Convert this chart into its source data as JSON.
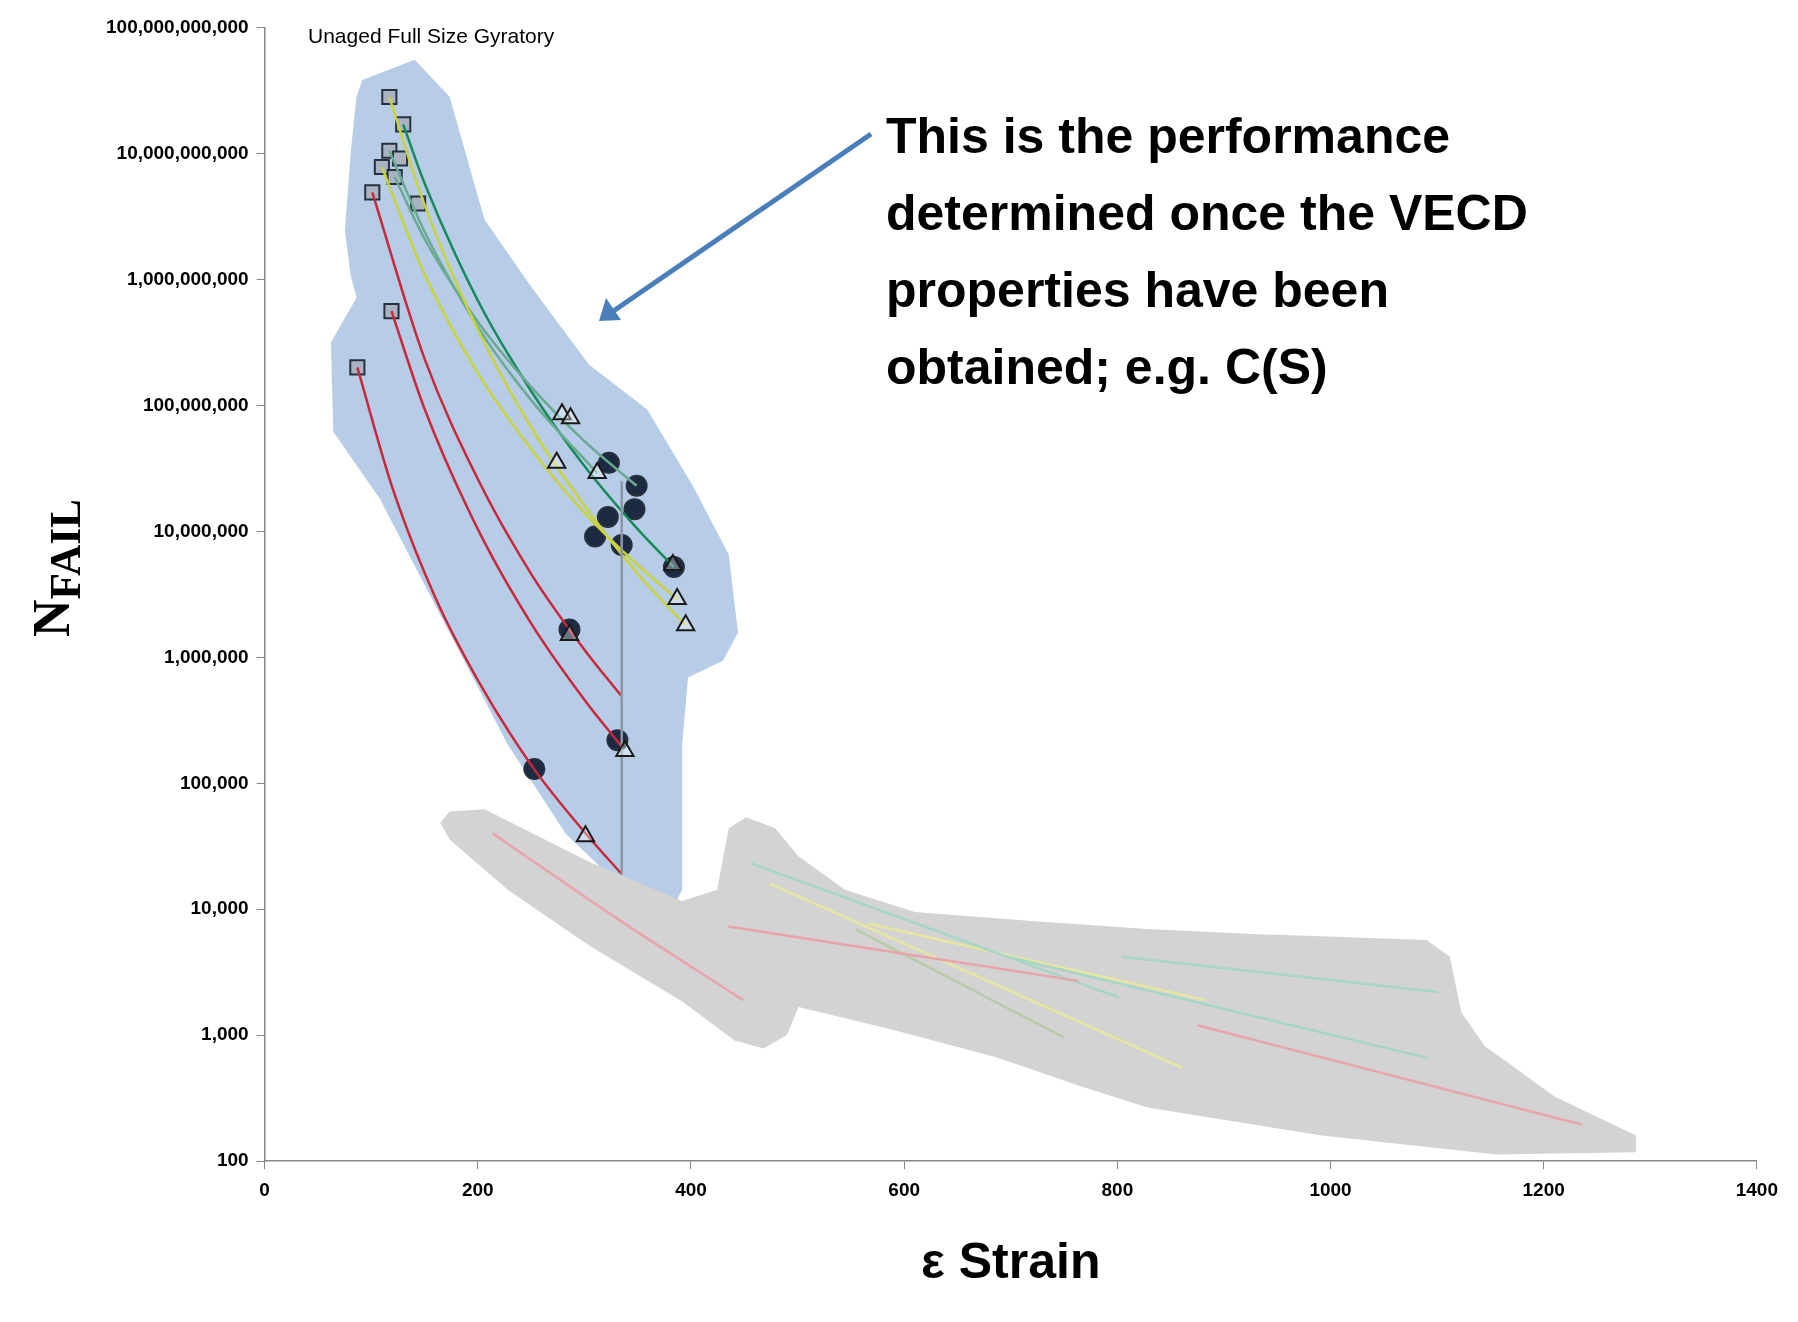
{
  "chart_data": {
    "type": "scatter",
    "xlabel": "ε Strain",
    "ylabel": "N$_{FAIL}$",
    "xlim": [
      0,
      1400
    ],
    "xticks": [
      0,
      200,
      400,
      600,
      800,
      1000,
      1200,
      1400
    ],
    "ylim": [
      100,
      100000000000
    ],
    "log": true,
    "yticks": [
      100,
      {
        "value": 1000,
        "label": "1,000"
      },
      {
        "value": 10000,
        "label": "10,000"
      },
      {
        "value": 100000,
        "label": "100,000"
      },
      {
        "value": 1000000,
        "label": "1,000,000"
      },
      {
        "value": 10000000,
        "label": "10,000,000"
      },
      {
        "value": 100000000,
        "label": "100,000,000"
      },
      {
        "value": 1000000000,
        "label": "1,000,000,000"
      },
      {
        "value": 10000000000,
        "label": "10,000,000,000"
      },
      {
        "value": 100000000000,
        "label": "100,000,000,000"
      }
    ],
    "annotations": [
      "Unaged Full Size Gyratory",
      "This is the performance determined once the VECD properties have been obtained; e.g. C(S)"
    ],
    "series": [
      {
        "type": "line",
        "color": "#e8a4aa",
        "x": [
          214,
          330,
          449
        ],
        "values": [
          40000,
          8500,
          1900
        ]
      },
      {
        "type": "line",
        "color": "#e8a4aa",
        "x": [
          435,
          763
        ],
        "values": [
          7300,
          2700
        ]
      },
      {
        "type": "line",
        "color": "#e8a4aa",
        "x": [
          875,
          1236
        ],
        "values": [
          1200,
          195
        ]
      },
      {
        "type": "line",
        "color": "#a6d6c6",
        "x": [
          457,
          801
        ],
        "values": [
          23000,
          2000
        ]
      },
      {
        "type": "line",
        "color": "#a6d6c6",
        "x": [
          804,
          1100
        ],
        "values": [
          4200,
          2200
        ]
      },
      {
        "type": "line",
        "color": "#a6d6c6",
        "x": [
          697,
          1091
        ],
        "values": [
          4200,
          660
        ]
      },
      {
        "type": "line",
        "color": "#e6e6a0",
        "x": [
          474,
          861
        ],
        "values": [
          16000,
          550
        ]
      },
      {
        "type": "line",
        "color": "#e6e6a0",
        "x": [
          566,
          883
        ],
        "values": [
          7700,
          1900
        ]
      },
      {
        "type": "line",
        "color": "#b8ccaa",
        "x": [
          555,
          750
        ],
        "values": [
          6900,
          960
        ]
      },
      {
        "type": "line",
        "color": "#8c96a2",
        "x": [
          335,
          335
        ],
        "values": [
          19000,
          25000000
        ]
      },
      {
        "type": "line",
        "color": "#c8283c",
        "x": [
          87,
          120,
          160,
          200,
          250,
          300,
          335
        ],
        "values": [
          200000000,
          22000000,
          3000000,
          660000,
          140000,
          41000,
          19000
        ]
      },
      {
        "type": "line",
        "color": "#c8283c",
        "x": [
          119,
          150,
          200,
          250,
          300,
          335
        ],
        "values": [
          560000000,
          94000000,
          10400000,
          1860000,
          460000,
          195000
        ]
      },
      {
        "type": "line",
        "color": "#c8283c",
        "x": [
          101,
          150,
          200,
          250,
          300,
          335
        ],
        "values": [
          4900000000,
          235000000,
          26000000,
          4600000,
          1150000,
          490000
        ]
      },
      {
        "type": "line",
        "color": "#c9d43c",
        "x": [
          117,
          150,
          200,
          250,
          300,
          350,
          395
        ],
        "values": [
          28000000000,
          3900000000,
          400000000,
          67000000,
          16000000,
          4600000,
          1800000
        ]
      },
      {
        "type": "line",
        "color": "#c9d43c",
        "x": [
          110,
          150,
          200,
          250,
          300,
          350,
          387
        ],
        "values": [
          7800000000,
          1100000000,
          180000000,
          45000000,
          14000000,
          5400000,
          2900000
        ]
      },
      {
        "type": "line",
        "color": "#6aaa92",
        "x": [
          122,
          150,
          200,
          250,
          300,
          349
        ],
        "values": [
          6500000000,
          2100000000,
          460000000,
          140000000,
          52000000,
          23000000
        ]
      },
      {
        "type": "line",
        "color": "#6aaa92",
        "x": [
          117,
          150,
          200,
          250,
          312
        ],
        "values": [
          10500000000,
          2400000000,
          420000000,
          110000000,
          29000000
        ]
      },
      {
        "type": "line",
        "color": "#178a5c",
        "x": [
          130,
          150,
          200,
          250,
          300,
          350,
          384
        ],
        "values": [
          17000000000,
          5800000000,
          680000000,
          130000000,
          33000000,
          10400000,
          5200000
        ]
      },
      {
        "marker": "square",
        "color": "#a9b3c2",
        "x": [
          117,
          130,
          117,
          127,
          110,
          122,
          101,
          144,
          119,
          87
        ],
        "values": [
          28000000000,
          17000000000,
          10500000000,
          9100000000,
          7800000000,
          6500000000,
          4900000000,
          4000000000,
          560000000,
          200000000
        ]
      },
      {
        "marker": "circle",
        "color": "#1c2a42",
        "x": [
          323,
          349,
          347,
          322,
          310,
          335,
          384,
          286,
          331,
          253
        ],
        "values": [
          35000000,
          23000000,
          15000000,
          13000000,
          9100000,
          7800000,
          5200000,
          1660000,
          220000,
          130000
        ]
      },
      {
        "marker": "triangle",
        "color": "#1a1a1a",
        "x": [
          279,
          287,
          274,
          312,
          383,
          387,
          395,
          286,
          338,
          301
        ],
        "values": [
          85000000,
          79000000,
          35000000,
          29000000,
          5400000,
          2900000,
          1800000,
          1500000,
          180000,
          38000
        ]
      }
    ]
  }
}
